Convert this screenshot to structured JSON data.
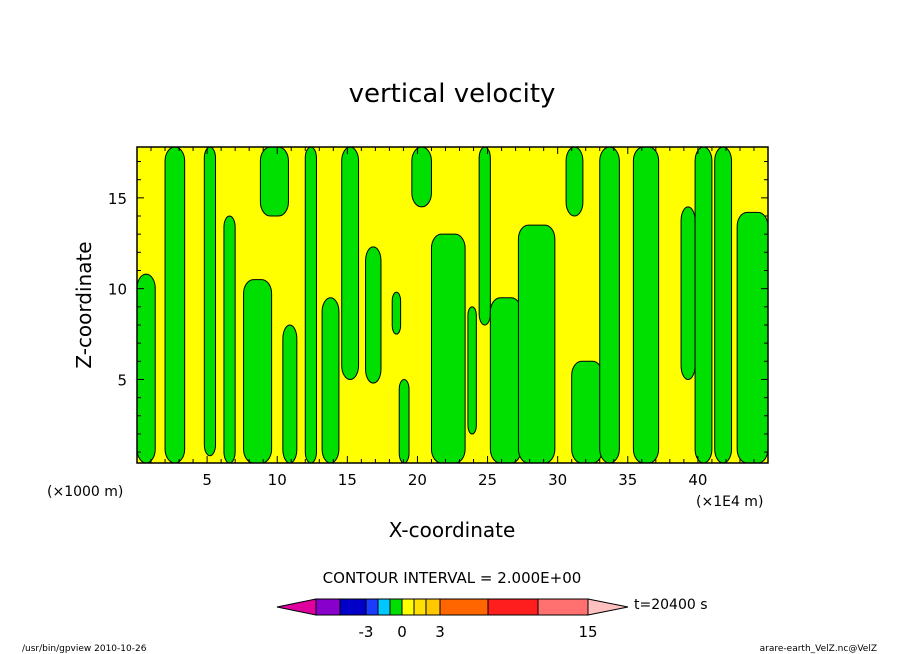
{
  "chart_data": {
    "type": "heatmap",
    "title": "vertical velocity",
    "xlabel": "X-coordinate",
    "ylabel": "Z-coordinate",
    "x_unit_left": "(×1000 m)",
    "x_unit_right": "(×1E4 m)",
    "xlim": [
      0,
      45
    ],
    "ylim": [
      0.4,
      17.8
    ],
    "x_ticks": [
      5,
      10,
      15,
      20,
      25,
      30,
      35,
      40
    ],
    "y_ticks": [
      5,
      10,
      15
    ],
    "x_tick_labels": [
      "5",
      "10",
      "15",
      "20",
      "25",
      "30",
      "35",
      "40"
    ],
    "y_tick_labels": [
      "5",
      "10",
      "15"
    ],
    "positive_color": "#ffff00",
    "negative_color": "#00e000",
    "fields": {
      "green_columns": [
        {
          "x0": 0.0,
          "x1": 1.3,
          "z0": 0.4,
          "z1": 10.8
        },
        {
          "x0": 2.0,
          "x1": 3.4,
          "z0": 0.4,
          "z1": 17.8
        },
        {
          "x0": 4.8,
          "x1": 5.6,
          "z0": 0.8,
          "z1": 17.8
        },
        {
          "x0": 6.2,
          "x1": 7.0,
          "z0": 0.4,
          "z1": 14.0
        },
        {
          "x0": 7.6,
          "x1": 9.6,
          "z0": 0.4,
          "z1": 10.5
        },
        {
          "x0": 8.8,
          "x1": 10.8,
          "z0": 14.0,
          "z1": 17.8
        },
        {
          "x0": 10.4,
          "x1": 11.4,
          "z0": 0.4,
          "z1": 8.0
        },
        {
          "x0": 12.0,
          "x1": 12.8,
          "z0": 0.4,
          "z1": 17.8
        },
        {
          "x0": 13.2,
          "x1": 14.4,
          "z0": 0.4,
          "z1": 9.5
        },
        {
          "x0": 14.6,
          "x1": 15.8,
          "z0": 5.0,
          "z1": 17.8
        },
        {
          "x0": 16.3,
          "x1": 17.4,
          "z0": 4.8,
          "z1": 12.3
        },
        {
          "x0": 18.2,
          "x1": 18.8,
          "z0": 7.5,
          "z1": 9.8
        },
        {
          "x0": 18.7,
          "x1": 19.4,
          "z0": 0.4,
          "z1": 5.0
        },
        {
          "x0": 19.6,
          "x1": 21.0,
          "z0": 14.5,
          "z1": 17.8
        },
        {
          "x0": 21.0,
          "x1": 23.4,
          "z0": 0.4,
          "z1": 13.0
        },
        {
          "x0": 23.6,
          "x1": 24.2,
          "z0": 2.0,
          "z1": 9.0
        },
        {
          "x0": 24.4,
          "x1": 25.2,
          "z0": 8.0,
          "z1": 17.8
        },
        {
          "x0": 25.2,
          "x1": 27.4,
          "z0": 0.4,
          "z1": 9.5
        },
        {
          "x0": 27.2,
          "x1": 29.8,
          "z0": 0.4,
          "z1": 13.5
        },
        {
          "x0": 30.6,
          "x1": 31.8,
          "z0": 14.0,
          "z1": 17.8
        },
        {
          "x0": 31.0,
          "x1": 33.2,
          "z0": 0.4,
          "z1": 6.0
        },
        {
          "x0": 33.0,
          "x1": 34.4,
          "z0": 0.4,
          "z1": 17.8
        },
        {
          "x0": 35.4,
          "x1": 37.2,
          "z0": 0.4,
          "z1": 17.8
        },
        {
          "x0": 38.8,
          "x1": 39.8,
          "z0": 5.0,
          "z1": 14.5
        },
        {
          "x0": 39.8,
          "x1": 41.0,
          "z0": 0.4,
          "z1": 17.8
        },
        {
          "x0": 41.2,
          "x1": 42.4,
          "z0": 0.4,
          "z1": 17.8
        },
        {
          "x0": 42.8,
          "x1": 45.0,
          "z0": 0.4,
          "z1": 14.2
        }
      ]
    },
    "colorbar": {
      "interval_label": "CONTOUR INTERVAL = 2.000E+00",
      "colors": [
        "#e000a0",
        "#8800cc",
        "#0000c8",
        "#1a3cff",
        "#00c8ff",
        "#00e000",
        "#ffff00",
        "#ffe000",
        "#ffc800",
        "#ff6600",
        "#ff1e1e",
        "#ff7070",
        "#ffc0c0"
      ],
      "tick_labels": [
        "-3",
        "0",
        "3",
        "15"
      ],
      "tick_values": [
        -3,
        0,
        3,
        15
      ]
    },
    "time_label": "t=20400 s"
  },
  "footer": {
    "left": "/usr/bin/gpview  2010-10-26",
    "right": "arare-earth_VelZ.nc@VelZ"
  }
}
